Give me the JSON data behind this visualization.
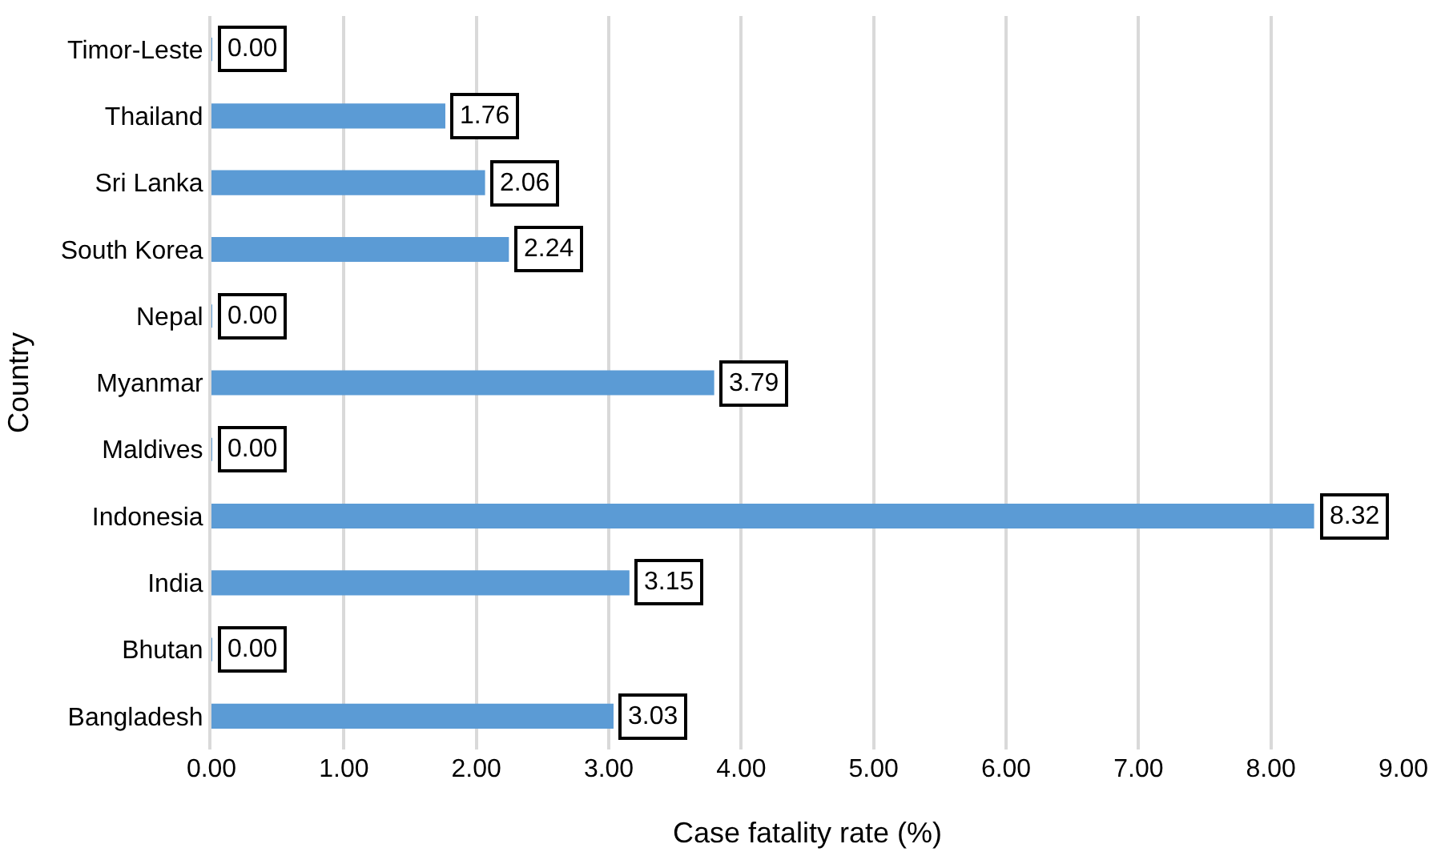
{
  "chart_data": {
    "type": "bar",
    "orientation": "horizontal",
    "xlabel": "Case fatality rate (%)",
    "ylabel": "Country",
    "categories": [
      "Timor-Leste",
      "Thailand",
      "Sri Lanka",
      "South Korea",
      "Nepal",
      "Myanmar",
      "Maldives",
      "Indonesia",
      "India",
      "Bhutan",
      "Bangladesh"
    ],
    "values": [
      0,
      1.76,
      2.06,
      2.24,
      0,
      3.79,
      0,
      8.32,
      3.15,
      0,
      3.03
    ],
    "value_labels": [
      "0.00",
      "1.76",
      "2.06",
      "2.24",
      "0.00",
      "3.79",
      "0.00",
      "8.32",
      "3.15",
      "0.00",
      "3.03"
    ],
    "color": "#5b9bd5",
    "xlim": [
      0,
      9
    ],
    "xticks": [
      {
        "value": 0,
        "label": "0.00"
      },
      {
        "value": 1,
        "label": "1.00"
      },
      {
        "value": 2,
        "label": "2.00"
      },
      {
        "value": 3,
        "label": "3.00"
      },
      {
        "value": 4,
        "label": "4.00"
      },
      {
        "value": 5,
        "label": "5.00"
      },
      {
        "value": 6,
        "label": "6.00"
      },
      {
        "value": 7,
        "label": "7.00"
      },
      {
        "value": 8,
        "label": "8.00"
      },
      {
        "value": 9,
        "label": "9.00"
      }
    ],
    "grid": "x"
  }
}
